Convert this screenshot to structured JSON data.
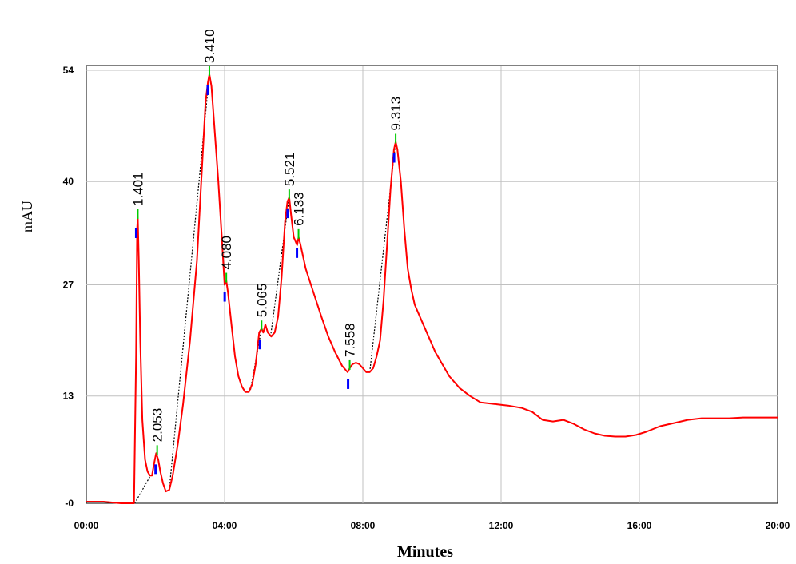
{
  "chart_data": {
    "type": "line",
    "title": "",
    "xlabel": "Minutes",
    "ylabel": "mAU",
    "xlim": [
      0,
      20
    ],
    "ylim": [
      -0.5,
      54
    ],
    "grid": true,
    "x_ticks": [
      0,
      4,
      8,
      12,
      16,
      20
    ],
    "x_tick_labels": [
      "00:00",
      "04:00",
      "08:00",
      "12:00",
      "16:00",
      "20:00"
    ],
    "y_ticks": [
      -0.5,
      13,
      27,
      40,
      54
    ],
    "y_tick_labels": [
      "-0",
      "13",
      "27",
      "40",
      "54"
    ],
    "colors": {
      "trace": "#ff0000",
      "baseline": "#000000",
      "grid": "#c0c0c0",
      "peak_start": "#0000ff",
      "peak_apex": "#00cc00"
    },
    "series": [
      {
        "type": "line",
        "values": [
          [
            0,
            -0.3
          ],
          [
            0.5,
            -0.3
          ],
          [
            1.0,
            -0.5
          ],
          [
            1.38,
            -0.5
          ],
          [
            1.44,
            18
          ],
          [
            1.47,
            34
          ],
          [
            1.49,
            35.5
          ],
          [
            1.52,
            30
          ],
          [
            1.56,
            20
          ],
          [
            1.62,
            10
          ],
          [
            1.7,
            5
          ],
          [
            1.77,
            3.5
          ],
          [
            1.84,
            3
          ],
          [
            1.9,
            3
          ],
          [
            1.96,
            4.5
          ],
          [
            2.02,
            5.8
          ],
          [
            2.08,
            5
          ],
          [
            2.14,
            3.5
          ],
          [
            2.22,
            2
          ],
          [
            2.3,
            1
          ],
          [
            2.4,
            1.2
          ],
          [
            2.5,
            3
          ],
          [
            2.65,
            7
          ],
          [
            2.8,
            12
          ],
          [
            3.0,
            20
          ],
          [
            3.2,
            30
          ],
          [
            3.35,
            42
          ],
          [
            3.45,
            50
          ],
          [
            3.52,
            52.5
          ],
          [
            3.56,
            53.5
          ],
          [
            3.62,
            52
          ],
          [
            3.72,
            46
          ],
          [
            3.82,
            40
          ],
          [
            3.92,
            33
          ],
          [
            4.0,
            27
          ],
          [
            4.05,
            27.5
          ],
          [
            4.1,
            26
          ],
          [
            4.2,
            22
          ],
          [
            4.3,
            18
          ],
          [
            4.4,
            15.5
          ],
          [
            4.5,
            14.2
          ],
          [
            4.6,
            13.5
          ],
          [
            4.7,
            13.5
          ],
          [
            4.8,
            14.5
          ],
          [
            4.9,
            17
          ],
          [
            5.0,
            21
          ],
          [
            5.07,
            21.5
          ],
          [
            5.12,
            21
          ],
          [
            5.18,
            22
          ],
          [
            5.25,
            21
          ],
          [
            5.35,
            20.5
          ],
          [
            5.45,
            21
          ],
          [
            5.55,
            23
          ],
          [
            5.65,
            28
          ],
          [
            5.75,
            35
          ],
          [
            5.82,
            37.5
          ],
          [
            5.87,
            38
          ],
          [
            5.92,
            36
          ],
          [
            6.0,
            33
          ],
          [
            6.1,
            32
          ],
          [
            6.14,
            33
          ],
          [
            6.2,
            32
          ],
          [
            6.35,
            29
          ],
          [
            6.5,
            27
          ],
          [
            6.65,
            25
          ],
          [
            6.8,
            23
          ],
          [
            7.0,
            20.5
          ],
          [
            7.2,
            18.5
          ],
          [
            7.4,
            16.8
          ],
          [
            7.56,
            16
          ],
          [
            7.62,
            16.5
          ],
          [
            7.7,
            17
          ],
          [
            7.8,
            17.2
          ],
          [
            7.9,
            17
          ],
          [
            8.0,
            16.5
          ],
          [
            8.1,
            16
          ],
          [
            8.2,
            16
          ],
          [
            8.3,
            16.5
          ],
          [
            8.4,
            18
          ],
          [
            8.5,
            20
          ],
          [
            8.6,
            25
          ],
          [
            8.7,
            32
          ],
          [
            8.8,
            39
          ],
          [
            8.9,
            44
          ],
          [
            8.95,
            45
          ],
          [
            9.0,
            44
          ],
          [
            9.1,
            40
          ],
          [
            9.2,
            34
          ],
          [
            9.3,
            29
          ],
          [
            9.4,
            26.5
          ],
          [
            9.5,
            24.5
          ],
          [
            9.7,
            22.5
          ],
          [
            9.9,
            20.5
          ],
          [
            10.1,
            18.5
          ],
          [
            10.3,
            17
          ],
          [
            10.5,
            15.5
          ],
          [
            10.8,
            14
          ],
          [
            11.1,
            13
          ],
          [
            11.4,
            12.2
          ],
          [
            11.8,
            12
          ],
          [
            12.2,
            11.8
          ],
          [
            12.6,
            11.5
          ],
          [
            12.9,
            11
          ],
          [
            13.2,
            10
          ],
          [
            13.5,
            9.8
          ],
          [
            13.8,
            10
          ],
          [
            14.1,
            9.5
          ],
          [
            14.4,
            8.8
          ],
          [
            14.7,
            8.3
          ],
          [
            15.0,
            8
          ],
          [
            15.3,
            7.9
          ],
          [
            15.6,
            7.9
          ],
          [
            15.9,
            8.1
          ],
          [
            16.2,
            8.5
          ],
          [
            16.6,
            9.2
          ],
          [
            17.0,
            9.6
          ],
          [
            17.4,
            10
          ],
          [
            17.8,
            10.2
          ],
          [
            18.2,
            10.2
          ],
          [
            18.6,
            10.2
          ],
          [
            19.0,
            10.3
          ],
          [
            19.5,
            10.3
          ],
          [
            20.0,
            10.3
          ]
        ]
      }
    ],
    "baseline_segments": [
      [
        [
          1.4,
          -0.5
        ],
        [
          1.86,
          3
        ]
      ],
      [
        [
          2.4,
          1.2
        ],
        [
          3.56,
          53.5
        ]
      ],
      [
        [
          4.75,
          13.8
        ],
        [
          5.07,
          21.5
        ]
      ],
      [
        [
          5.33,
          20.5
        ],
        [
          5.87,
          38
        ]
      ],
      [
        [
          8.2,
          16
        ],
        [
          8.95,
          45
        ]
      ]
    ],
    "peaks": [
      {
        "label": "1.401",
        "x": 1.49,
        "y": 35.5
      },
      {
        "label": "2.053",
        "x": 2.05,
        "y": 5.8
      },
      {
        "label": "3.410",
        "x": 3.56,
        "y": 53.5
      },
      {
        "label": "4.080",
        "x": 4.05,
        "y": 27.5
      },
      {
        "label": "5.065",
        "x": 5.07,
        "y": 21.5
      },
      {
        "label": "5.521",
        "x": 5.87,
        "y": 38
      },
      {
        "label": "6.133",
        "x": 6.14,
        "y": 33
      },
      {
        "label": "7.558",
        "x": 7.62,
        "y": 16.5
      },
      {
        "label": "9.313",
        "x": 8.95,
        "y": 45
      }
    ]
  }
}
